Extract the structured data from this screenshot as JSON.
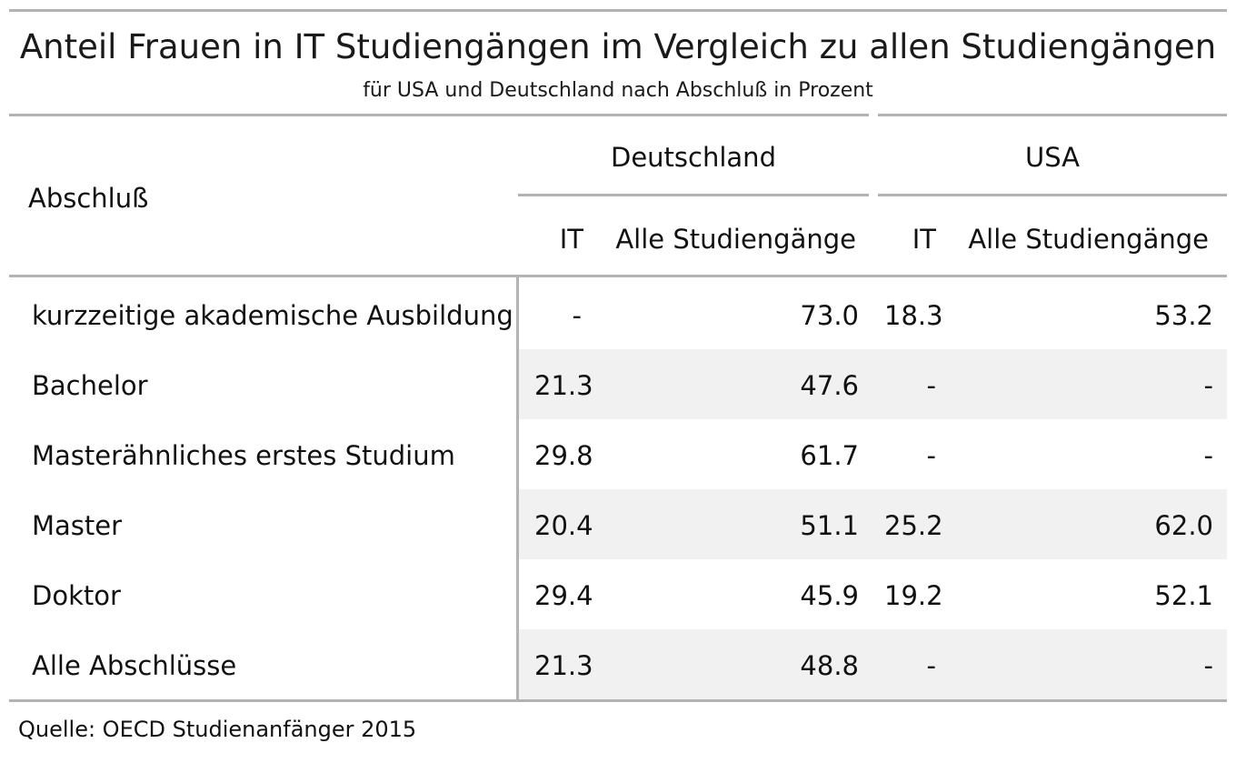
{
  "chart_data": {
    "type": "table",
    "title": "Anteil Frauen in IT Studiengängen im Vergleich zu allen Studiengängen",
    "subtitle": "für USA und Deutschland nach Abschluß in Prozent",
    "row_header": "Abschluß",
    "groups": [
      {
        "name": "Deutschland",
        "columns": [
          "IT",
          "Alle Studiengänge"
        ]
      },
      {
        "name": "USA",
        "columns": [
          "IT",
          "Alle Studiengänge"
        ]
      }
    ],
    "rows": [
      {
        "label": "kurzzeitige akademische Ausbildung",
        "values": [
          "-",
          "73.0",
          "18.3",
          "53.2"
        ]
      },
      {
        "label": "Bachelor",
        "values": [
          "21.3",
          "47.6",
          "-",
          "-"
        ]
      },
      {
        "label": "Masterähnliches erstes Studium",
        "values": [
          "29.8",
          "61.7",
          "-",
          "-"
        ]
      },
      {
        "label": "Master",
        "values": [
          "20.4",
          "51.1",
          "25.2",
          "62.0"
        ]
      },
      {
        "label": "Doktor",
        "values": [
          "29.4",
          "45.9",
          "19.2",
          "52.1"
        ]
      },
      {
        "label": "Alle Abschlüsse",
        "values": [
          "21.3",
          "48.8",
          "-",
          "-"
        ]
      }
    ],
    "source": "Quelle: OECD Studienanfänger 2015"
  },
  "colors": {
    "rule": "#b3b3b3",
    "band": "#f1f1f1",
    "text": "#111111"
  }
}
